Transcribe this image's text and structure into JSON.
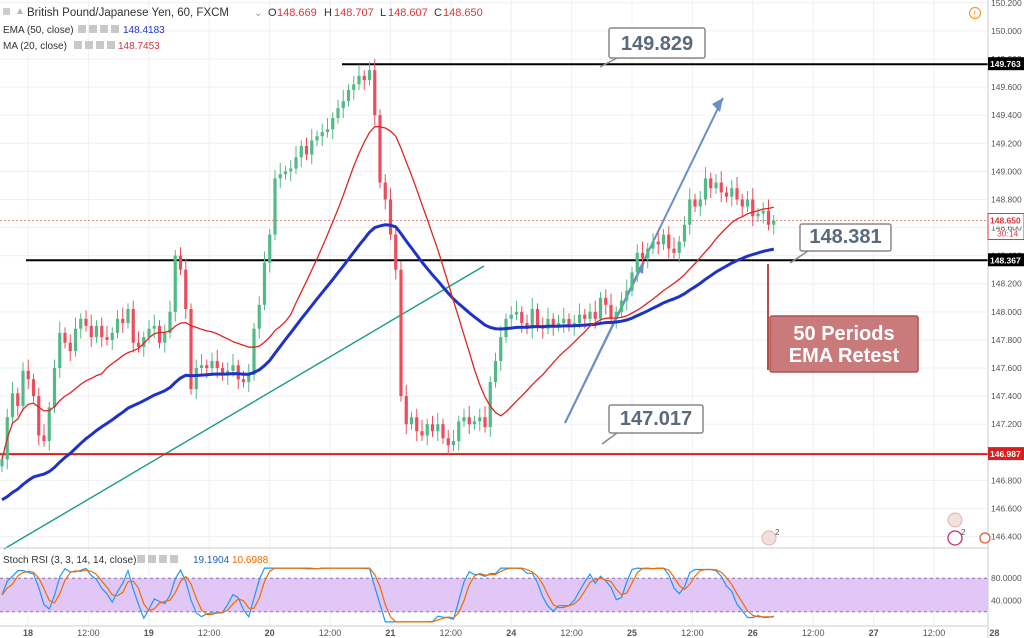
{
  "header": {
    "symbol": "British Pound/Japanese Yen, 60, FXCM",
    "o_label": "O",
    "o_value": "148.669",
    "h_label": "H",
    "h_value": "148.707",
    "l_label": "L",
    "l_value": "148.607",
    "c_label": "C",
    "c_value": "148.650",
    "ema_label": "EMA (50, close)",
    "ema_value": "148.4183",
    "ma_label": "MA (20, close)",
    "ma_value": "148.7453",
    "rsi_label": "Stoch RSI (3, 3, 14, 14, close)",
    "rsi_k": "19.1904",
    "rsi_d": "10.6988"
  },
  "chart_data": [
    {
      "type": "candlestick",
      "title": "British Pound/Japanese Yen, 60, FXCM",
      "xlabel": "",
      "ylabel": "",
      "ylim": [
        146.34,
        150.22
      ],
      "y_ticks": [
        "150.200",
        "150.000",
        "149.800",
        "149.600",
        "149.400",
        "149.200",
        "149.000",
        "148.800",
        "148.600",
        "148.400",
        "148.200",
        "148.000",
        "147.800",
        "147.600",
        "147.400",
        "147.200",
        "147.000",
        "146.800",
        "146.600",
        "146.400"
      ],
      "x_ticks": [
        "18",
        "12:00",
        "19",
        "12:00",
        "20",
        "12:00",
        "21",
        "12:00",
        "24",
        "12:00",
        "25",
        "12:00",
        "26",
        "12:00",
        "27",
        "12:00",
        "28"
      ],
      "close_series": [
        146.95,
        147.25,
        147.42,
        147.33,
        147.58,
        147.52,
        147.4,
        147.12,
        147.08,
        147.32,
        147.6,
        147.85,
        147.78,
        147.72,
        147.88,
        147.95,
        147.9,
        147.82,
        147.9,
        147.82,
        147.8,
        147.85,
        147.95,
        147.92,
        148.02,
        147.78,
        147.75,
        147.82,
        147.88,
        147.9,
        147.78,
        147.85,
        148.0,
        148.4,
        148.3,
        148.02,
        147.45,
        147.6,
        147.62,
        147.6,
        147.65,
        147.6,
        147.55,
        147.58,
        147.62,
        147.52,
        147.5,
        147.55,
        147.88,
        148.05,
        148.35,
        148.55,
        148.95,
        148.98,
        149.0,
        149.02,
        149.1,
        149.18,
        149.12,
        149.22,
        149.25,
        149.28,
        149.3,
        149.38,
        149.45,
        149.5,
        149.58,
        149.62,
        149.68,
        149.65,
        149.72,
        149.4,
        148.92,
        148.8,
        148.55,
        148.3,
        147.4,
        147.2,
        147.25,
        147.15,
        147.12,
        147.2,
        147.15,
        147.2,
        147.1,
        147.05,
        147.08,
        147.22,
        147.25,
        147.2,
        147.22,
        147.25,
        147.18,
        147.5,
        147.65,
        147.82,
        147.95,
        147.98,
        148.0,
        147.92,
        147.88,
        148.02,
        147.9,
        147.88,
        147.95,
        147.9,
        147.92,
        147.95,
        147.9,
        147.92,
        147.98,
        147.95,
        148.0,
        147.95,
        148.1,
        148.05,
        147.95,
        148.0,
        148.08,
        148.15,
        148.28,
        148.42,
        148.38,
        148.45,
        148.5,
        148.48,
        148.55,
        148.45,
        148.42,
        148.5,
        148.62,
        148.8,
        148.75,
        148.8,
        148.95,
        148.88,
        148.92,
        148.85,
        148.82,
        148.88,
        148.8,
        148.75,
        148.8,
        148.68,
        148.7,
        148.72,
        148.62,
        148.65
      ],
      "lines": [
        {
          "name": "EMA (50, close)",
          "color": "#1f32c8",
          "value": 148.4183
        },
        {
          "name": "MA (20, close)",
          "color": "#e02424",
          "value": 148.7453
        }
      ],
      "levels": [
        {
          "value": 149.763,
          "label": "149.763",
          "color": "#000000"
        },
        {
          "value": 148.367,
          "label": "148.367",
          "color": "#000000"
        },
        {
          "value": 146.987,
          "label": "146.987",
          "color": "#d62020"
        },
        {
          "value": 148.65,
          "label": "148.650",
          "color": "#e05555"
        }
      ],
      "last_price_time": "30:14",
      "annotations": [
        {
          "text": "149.829"
        },
        {
          "text": "148.381"
        },
        {
          "text": "147.017"
        },
        {
          "text": "50 Periods",
          "text2": "EMA Retest"
        }
      ]
    },
    {
      "type": "line",
      "title": "Stoch RSI (3, 3, 14, 14, close)",
      "xlabel": "",
      "ylabel": "",
      "ylim": [
        0,
        100
      ],
      "y_ticks": [
        "80.0000",
        "40.0000"
      ],
      "band": [
        20,
        80
      ],
      "series": [
        {
          "name": "Stoch RSI (3, 3, 14, 14, close)",
          "color": "#2196f3",
          "value": 19.1904
        },
        {
          "name": "Stoch RSI (3, 3, 14, 14, close)",
          "color": "#ef6c00",
          "value": 10.6988
        }
      ]
    }
  ]
}
